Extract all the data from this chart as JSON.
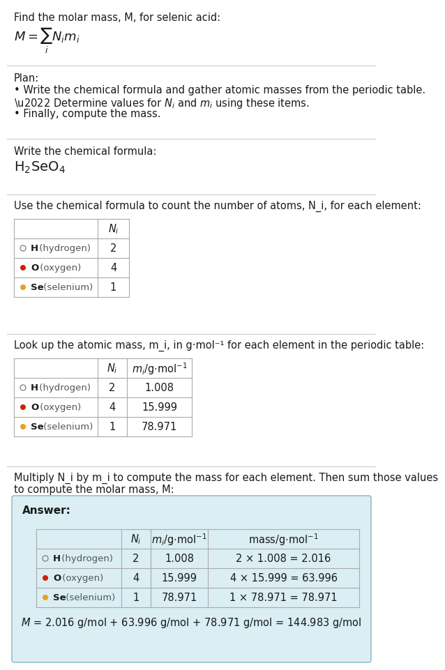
{
  "title_line": "Find the molar mass, M, for selenic acid:",
  "bg_color": "#ffffff",
  "section_bg_answer": "#daeef3",
  "answer_border": "#9bbfcc",
  "plan_header": "Plan:",
  "plan_b1": "• Write the chemical formula and gather atomic masses from the periodic table.",
  "plan_b2": "• Determine values for N_i and m_i using these items.",
  "plan_b3": "• Finally, compute the mass.",
  "formula_section_label": "Write the chemical formula:",
  "count_section_label": "Use the chemical formula to count the number of atoms, N_i, for each element:",
  "lookup_section_label": "Look up the atomic mass, m_i, in g·mol⁻¹ for each element in the periodic table:",
  "multiply_line1": "Multiply N_i by m_i to compute the mass for each element. Then sum those values",
  "multiply_line2": "to compute the molar mass, M:",
  "answer_label": "Answer:",
  "element_symbols": [
    "H",
    "O",
    "Se"
  ],
  "element_names": [
    "(hydrogen)",
    "(oxygen)",
    "(selenium)"
  ],
  "dot_colors": [
    "none",
    "#cc2200",
    "#e8a020"
  ],
  "dot_outlines": [
    "#888888",
    "#cc2200",
    "#e8a020"
  ],
  "Ni": [
    2,
    4,
    1
  ],
  "mi": [
    1.008,
    15.999,
    78.971
  ],
  "mass_exprs": [
    "2 × 1.008 = 2.016",
    "4 × 15.999 = 63.996",
    "1 × 78.971 = 78.971"
  ],
  "final_eq": "M = 2.016 g/mol + 63.996 g/mol + 78.971 g/mol = 144.983 g/mol",
  "sep_color": "#cccccc",
  "tbl_color": "#aaaaaa",
  "fig_w": 529,
  "fig_h": 942,
  "dpi": 100
}
